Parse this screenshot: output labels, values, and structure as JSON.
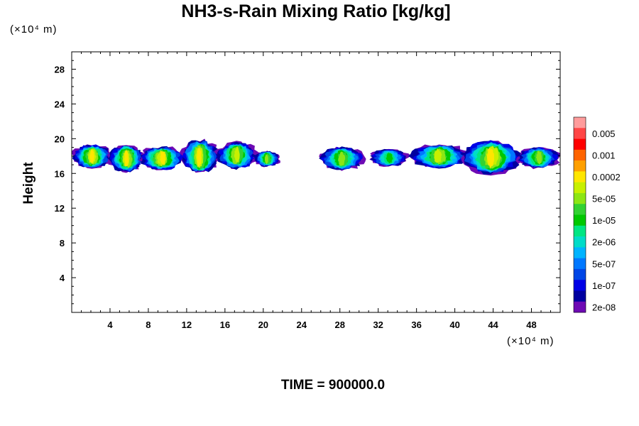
{
  "chart_data": {
    "type": "heatmap",
    "title": "NH3-s-Rain Mixing Ratio [kg/kg]",
    "xlabel": "",
    "ylabel": "Height",
    "x_unit": "(×10⁴ m)",
    "y_unit": "(×10⁴ m)",
    "xlim": [
      0,
      51
    ],
    "ylim": [
      0,
      30
    ],
    "x_ticks": [
      4,
      8,
      12,
      16,
      20,
      24,
      28,
      32,
      36,
      40,
      44,
      48
    ],
    "y_ticks": [
      4,
      8,
      12,
      16,
      20,
      24,
      28
    ],
    "colorbar": {
      "labels": [
        "0.005",
        "0.001",
        "0.0002",
        "5e-05",
        "1e-05",
        "2e-06",
        "5e-07",
        "1e-07",
        "2e-08"
      ],
      "colors": [
        "#ff9c9c",
        "#ff4646",
        "#ff0000",
        "#ff6400",
        "#ffa000",
        "#ffe600",
        "#c8f000",
        "#8ce614",
        "#32d232",
        "#00c800",
        "#00e682",
        "#00dcc8",
        "#00b4ff",
        "#0078ff",
        "#0046e6",
        "#0000e6",
        "#0000a0",
        "#6e0ab4"
      ]
    },
    "cloud_regions": [
      {
        "x0": 0.0,
        "x1": 4.2,
        "y0": 16.6,
        "y1": 19.3,
        "peak": 5
      },
      {
        "x0": 3.8,
        "x1": 7.6,
        "y0": 16.2,
        "y1": 19.3,
        "peak": 5
      },
      {
        "x0": 7.0,
        "x1": 11.8,
        "y0": 16.4,
        "y1": 19.1,
        "peak": 5
      },
      {
        "x0": 11.4,
        "x1": 15.4,
        "y0": 16.0,
        "y1": 19.8,
        "peak": 5
      },
      {
        "x0": 15.0,
        "x1": 19.4,
        "y0": 16.6,
        "y1": 19.6,
        "peak": 6
      },
      {
        "x0": 19.0,
        "x1": 21.8,
        "y0": 16.8,
        "y1": 18.6,
        "peak": 7
      },
      {
        "x0": 25.8,
        "x1": 30.6,
        "y0": 16.4,
        "y1": 19.0,
        "peak": 7
      },
      {
        "x0": 31.0,
        "x1": 35.2,
        "y0": 16.8,
        "y1": 18.8,
        "peak": 9
      },
      {
        "x0": 35.2,
        "x1": 41.5,
        "y0": 16.6,
        "y1": 19.3,
        "peak": 6
      },
      {
        "x0": 40.5,
        "x1": 47.0,
        "y0": 16.0,
        "y1": 19.7,
        "peak": 5
      },
      {
        "x0": 46.5,
        "x1": 51.0,
        "y0": 16.6,
        "y1": 19.0,
        "peak": 7
      }
    ]
  },
  "footer_text": "TIME = 900000.0"
}
